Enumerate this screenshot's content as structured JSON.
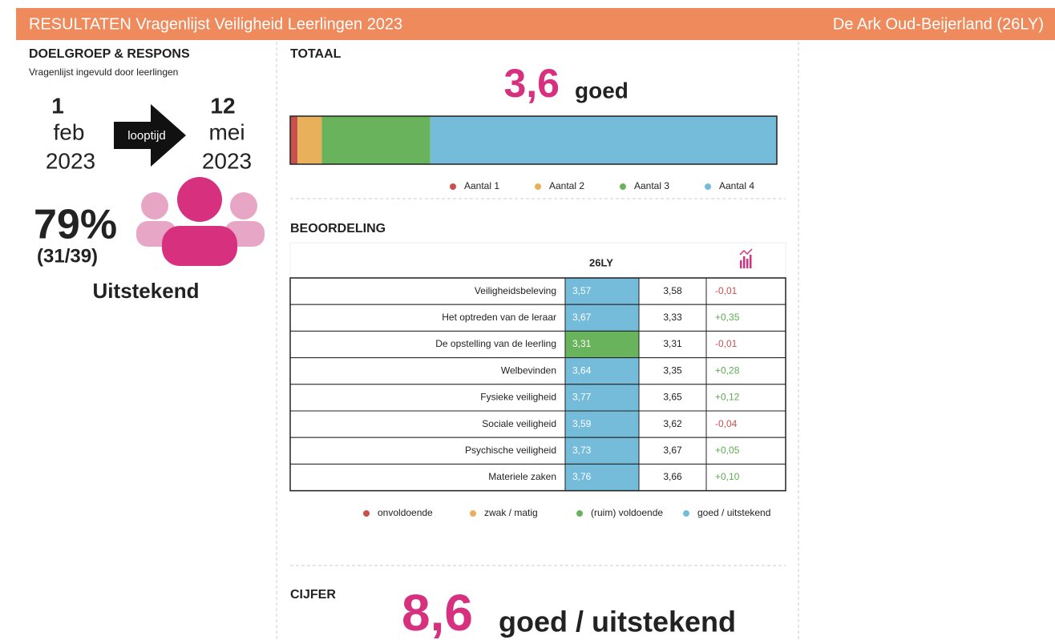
{
  "header": {
    "title": "RESULTATEN Vragenlijst Veiligheid Leerlingen 2023",
    "school": "De Ark Oud-Beijerland (26LY)"
  },
  "doelgroep": {
    "title": "DOELGROEP & RESPONS",
    "subtitle": "Vragenlijst ingevuld door leerlingen",
    "start": {
      "day": "1",
      "month": "feb",
      "year": "2023"
    },
    "arrow": "looptijd",
    "end": {
      "day": "12",
      "month": "mei",
      "year": "2023"
    },
    "percentage": "79%",
    "count": "(31/39)",
    "verdict": "Uitstekend"
  },
  "totaal": {
    "title": "TOTAAL",
    "score": "3,6",
    "label": "goed",
    "chart_data": {
      "type": "stacked-bar",
      "xlim": [
        0,
        100
      ],
      "series": [
        {
          "name": "Aantal 1",
          "color": "#c9514d",
          "values": [
            1.5
          ]
        },
        {
          "name": "Aantal 2",
          "color": "#e8b05a",
          "values": [
            5
          ]
        },
        {
          "name": "Aantal 3",
          "color": "#6ab35d",
          "values": [
            22.3
          ]
        },
        {
          "name": "Aantal 4",
          "color": "#75bcdb",
          "values": [
            71.2
          ]
        }
      ]
    }
  },
  "beoordeling": {
    "title": "BEOORDELING",
    "header": "26LY",
    "rows": [
      [
        "Veiligheidsbeleving",
        "3,57",
        "3,58",
        "-0,01"
      ],
      [
        "Het optreden van de leraar",
        "3,67",
        "3,33",
        "+0,35"
      ],
      [
        "De opstelling van de leerling",
        "3,31",
        "3,31",
        "-0,01"
      ],
      [
        "Welbevinden",
        "3,64",
        "3,35",
        "+0,28"
      ],
      [
        "Fysieke veiligheid",
        "3,77",
        "3,65",
        "+0,12"
      ],
      [
        "Sociale veiligheid",
        "3,59",
        "3,62",
        "-0,04"
      ],
      [
        "Psychische veiligheid",
        "3,73",
        "3,67",
        "+0,05"
      ],
      [
        "Materiele zaken",
        "3,76",
        "3,66",
        "+0,10"
      ]
    ],
    "cell_colors": [
      "#75bcdb",
      "#75bcdb",
      "#6ab35d",
      "#75bcdb",
      "#75bcdb",
      "#75bcdb",
      "#75bcdb",
      "#75bcdb"
    ],
    "legend": [
      {
        "name": "onvoldoende",
        "color": "#c9514d"
      },
      {
        "name": "zwak / matig",
        "color": "#e8b05a"
      },
      {
        "name": "(ruim) voldoende",
        "color": "#6ab35d"
      },
      {
        "name": "goed / uitstekend",
        "color": "#75bcdb"
      }
    ]
  },
  "cijfer": {
    "title": "CIJFER",
    "score": "8,6",
    "label": "goed / uitstekend"
  }
}
